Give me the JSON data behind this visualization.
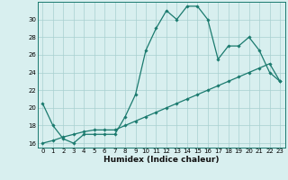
{
  "title": "",
  "xlabel": "Humidex (Indice chaleur)",
  "ylabel": "",
  "bg_color": "#d8efef",
  "line_color": "#1a7a6e",
  "grid_color": "#a8d0d0",
  "line1_x": [
    0,
    1,
    2,
    3,
    4,
    5,
    6,
    7,
    8,
    9,
    10,
    11,
    12,
    13,
    14,
    15,
    16,
    17,
    18,
    19,
    20,
    21,
    22,
    23
  ],
  "line1_y": [
    20.5,
    18.0,
    16.5,
    16.0,
    17.0,
    17.0,
    17.0,
    17.0,
    19.0,
    21.5,
    26.5,
    29.0,
    31.0,
    30.0,
    31.5,
    31.5,
    30.0,
    25.5,
    27.0,
    27.0,
    28.0,
    26.5,
    24.0,
    23.0
  ],
  "line2_x": [
    0,
    1,
    2,
    3,
    4,
    5,
    6,
    7,
    8,
    9,
    10,
    11,
    12,
    13,
    14,
    15,
    16,
    17,
    18,
    19,
    20,
    21,
    22,
    23
  ],
  "line2_y": [
    16.0,
    16.3,
    16.7,
    17.0,
    17.3,
    17.5,
    17.5,
    17.5,
    18.0,
    18.5,
    19.0,
    19.5,
    20.0,
    20.5,
    21.0,
    21.5,
    22.0,
    22.5,
    23.0,
    23.5,
    24.0,
    24.5,
    25.0,
    23.0
  ],
  "xlim": [
    -0.5,
    23.5
  ],
  "ylim": [
    15.5,
    32.0
  ],
  "yticks": [
    16,
    18,
    20,
    22,
    24,
    26,
    28,
    30
  ],
  "xticks": [
    0,
    1,
    2,
    3,
    4,
    5,
    6,
    7,
    8,
    9,
    10,
    11,
    12,
    13,
    14,
    15,
    16,
    17,
    18,
    19,
    20,
    21,
    22,
    23
  ],
  "marker": "D",
  "markersize": 1.8,
  "linewidth": 0.9,
  "label_fontsize": 6.5,
  "tick_fontsize": 5.0
}
